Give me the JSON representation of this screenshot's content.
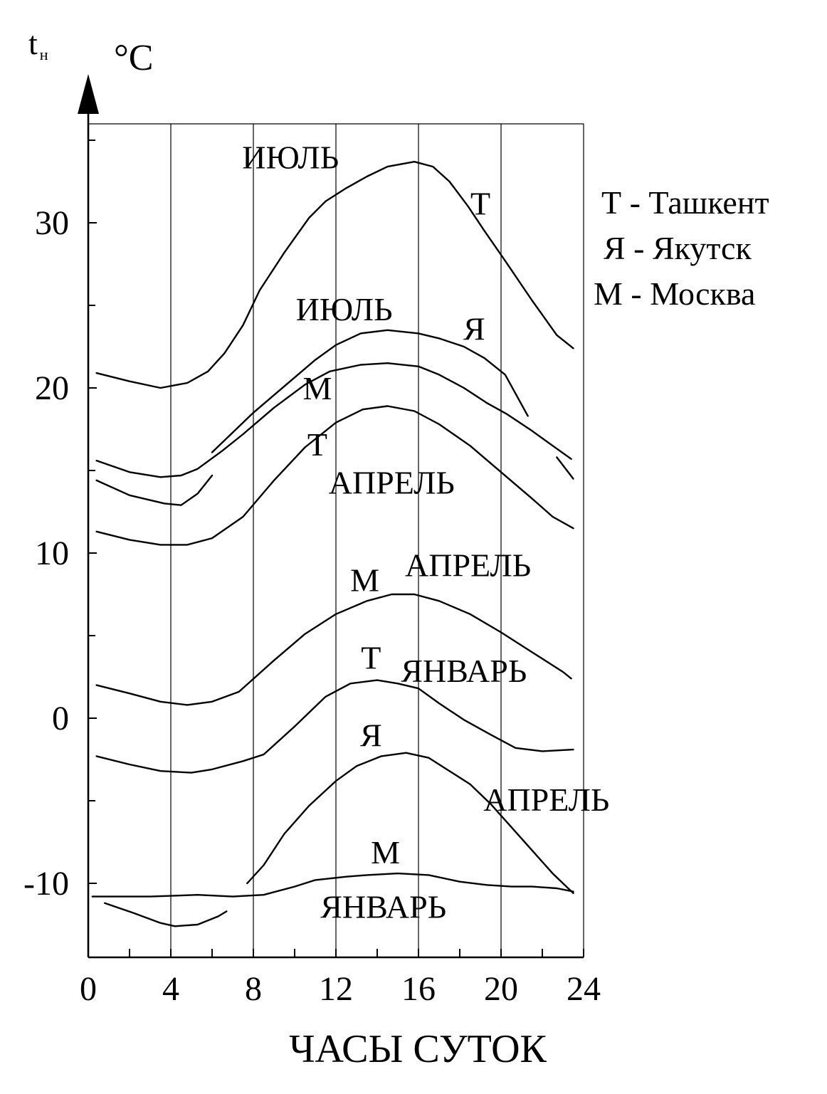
{
  "chart_data": {
    "type": "line",
    "ylabel": "t",
    "ylabel_sub": "н",
    "yunit": "°C",
    "xlabel": "ЧАСЫ СУТОК",
    "xlim": [
      0,
      24
    ],
    "ylim": [
      -13.5,
      35.5
    ],
    "xticks": [
      0,
      4,
      8,
      12,
      16,
      20,
      24
    ],
    "yticks": [
      -10,
      0,
      10,
      20,
      30
    ],
    "grid_x": [
      4,
      8,
      12,
      16,
      20,
      24
    ],
    "legend": [
      "Т - Ташкент",
      "Я - Якутск",
      "М - Москва"
    ],
    "legend_position": "right",
    "annotations": [
      {
        "text": "ИЮЛЬ",
        "x": 9.8,
        "y": 33.3
      },
      {
        "text": "Т",
        "x": 19.0,
        "y": 30.5
      },
      {
        "text": "ИЮЛЬ",
        "x": 12.4,
        "y": 24.1
      },
      {
        "text": "Я",
        "x": 18.7,
        "y": 22.9
      },
      {
        "text": "М",
        "x": 11.1,
        "y": 19.3
      },
      {
        "text": "Т",
        "x": 11.1,
        "y": 15.9
      },
      {
        "text": "АПРЕЛЬ",
        "x": 14.7,
        "y": 13.6
      },
      {
        "text": "АПРЕЛЬ",
        "x": 18.4,
        "y": 8.6
      },
      {
        "text": "М",
        "x": 13.4,
        "y": 7.7
      },
      {
        "text": "Т",
        "x": 13.7,
        "y": 3.0
      },
      {
        "text": "ЯНВАРЬ",
        "x": 18.2,
        "y": 2.2
      },
      {
        "text": "Я",
        "x": 13.7,
        "y": -1.7
      },
      {
        "text": "АПРЕЛЬ",
        "x": 22.2,
        "y": -5.6
      },
      {
        "text": "М",
        "x": 14.4,
        "y": -8.8
      },
      {
        "text": "ЯНВАРЬ",
        "x": 14.3,
        "y": -12.1
      }
    ],
    "series": [
      {
        "city": "Т",
        "month": "ИЮЛЬ",
        "x": [
          0.4,
          2,
          3.5,
          4.8,
          5.8,
          6.6,
          7.5,
          8.3,
          9.5,
          10.7,
          11.5,
          12.5,
          13.5,
          14.5,
          15.8,
          16.7,
          17.5,
          18.4,
          19.2,
          20.2,
          21.5,
          22.7,
          23.5
        ],
        "y": [
          20.9,
          20.4,
          20.0,
          20.3,
          21.0,
          22.1,
          23.8,
          25.9,
          28.2,
          30.3,
          31.3,
          32.1,
          32.8,
          33.4,
          33.7,
          33.4,
          32.5,
          31.0,
          29.5,
          27.7,
          25.3,
          23.2,
          22.4
        ]
      },
      {
        "city": "Я",
        "month": "ИЮЛЬ",
        "x": [
          6.0,
          8.0,
          9.5,
          11,
          12,
          13.2,
          14.5,
          16,
          17,
          18.2,
          19.2,
          20.2,
          21.3
        ],
        "y": [
          16.1,
          18.5,
          20.1,
          21.7,
          22.6,
          23.3,
          23.5,
          23.3,
          23.0,
          22.5,
          21.8,
          20.8,
          18.3
        ]
      },
      {
        "city": "М",
        "month": "ИЮЛЬ",
        "x": [
          0.4,
          2,
          3.5,
          4.5,
          5.3,
          6.5,
          7.5,
          9,
          10.5,
          11.7,
          13.2,
          14.5,
          16,
          17,
          18.2,
          19.3,
          20.3,
          21.5,
          22.5,
          23.4
        ],
        "y": [
          15.6,
          14.9,
          14.6,
          14.7,
          15.1,
          16.2,
          17.2,
          18.8,
          20.2,
          21.0,
          21.4,
          21.5,
          21.3,
          20.8,
          20.0,
          19.1,
          18.4,
          17.4,
          16.5,
          15.7
        ]
      },
      {
        "city": "Т",
        "month": "АПРЕЛЬ",
        "x": [
          0.4,
          2,
          3.7,
          4.5,
          5.3,
          6.0
        ],
        "y": [
          14.4,
          13.5,
          13.0,
          12.9,
          13.6,
          14.7
        ]
      },
      {
        "city": "Т",
        "month": "АПРЕЛЬ",
        "x": [
          22.7,
          23.5
        ],
        "y": [
          15.8,
          14.5
        ]
      },
      {
        "city": "М",
        "month": "АПРЕЛЬ",
        "x": [
          0.4,
          2,
          3.5,
          4.8,
          6.0,
          7.5,
          9,
          10.5,
          12,
          13.3,
          14.5,
          15.8,
          17,
          18.5,
          20,
          21.5,
          22.5,
          23.5
        ],
        "y": [
          11.3,
          10.8,
          10.5,
          10.5,
          10.9,
          12.2,
          14.4,
          16.4,
          17.9,
          18.7,
          18.9,
          18.6,
          17.8,
          16.5,
          14.9,
          13.3,
          12.2,
          11.5
        ]
      },
      {
        "city": "М",
        "month": "АПРЕЛЬ",
        "x": [
          0.4,
          2,
          3.5,
          4.8,
          6.0,
          7.3,
          9,
          10.5,
          12,
          13.5,
          14.7,
          15.8,
          17,
          18.5,
          20,
          21.5,
          23,
          23.4
        ],
        "y": [
          2.0,
          1.5,
          1.0,
          0.8,
          1.0,
          1.6,
          3.5,
          5.1,
          6.3,
          7.1,
          7.5,
          7.5,
          7.1,
          6.3,
          5.2,
          4.0,
          2.8,
          2.4
        ]
      },
      {
        "city": "Т",
        "month": "ЯНВАРЬ",
        "x": [
          0.4,
          2,
          3.5,
          5,
          6,
          7.5,
          8.5,
          10,
          11.5,
          12.7,
          14,
          15,
          16,
          17,
          18.2,
          19.5,
          20.7,
          22,
          23.5
        ],
        "y": [
          -2.3,
          -2.8,
          -3.2,
          -3.3,
          -3.1,
          -2.6,
          -2.2,
          -0.5,
          1.3,
          2.1,
          2.3,
          2.1,
          1.8,
          0.9,
          -0.1,
          -1.0,
          -1.8,
          -2.0,
          -1.9
        ]
      },
      {
        "city": "Я",
        "month": "АПРЕЛЬ",
        "x": [
          7.7,
          8.5,
          9.5,
          10.7,
          12,
          13,
          14.2,
          15.4,
          16.5,
          17.5,
          18.5,
          19.5,
          20.5,
          21.5,
          22.5,
          23.5
        ],
        "y": [
          -10.0,
          -8.9,
          -7.0,
          -5.3,
          -3.8,
          -2.9,
          -2.3,
          -2.1,
          -2.4,
          -3.2,
          -4.0,
          -5.2,
          -6.6,
          -8.0,
          -9.4,
          -10.6
        ]
      },
      {
        "city": "М",
        "month": "ЯНВАРЬ",
        "x": [
          0.2,
          3,
          5.3,
          7.0,
          8.5,
          10,
          11,
          12.5,
          13.5,
          15,
          16.5,
          18,
          19.3,
          20.5,
          21.5,
          22.7,
          23.5
        ],
        "y": [
          -10.8,
          -10.8,
          -10.7,
          -10.8,
          -10.7,
          -10.2,
          -9.8,
          -9.6,
          -9.5,
          -9.4,
          -9.5,
          -9.9,
          -10.1,
          -10.2,
          -10.2,
          -10.3,
          -10.5
        ]
      },
      {
        "city": "Я",
        "month": "ЯНВАРЬ",
        "x": [
          0.8,
          2.2,
          3.5,
          4.2,
          5.3,
          6.3,
          6.7
        ],
        "y": [
          -11.2,
          -11.8,
          -12.4,
          -12.6,
          -12.5,
          -12.0,
          -11.7
        ]
      }
    ]
  }
}
